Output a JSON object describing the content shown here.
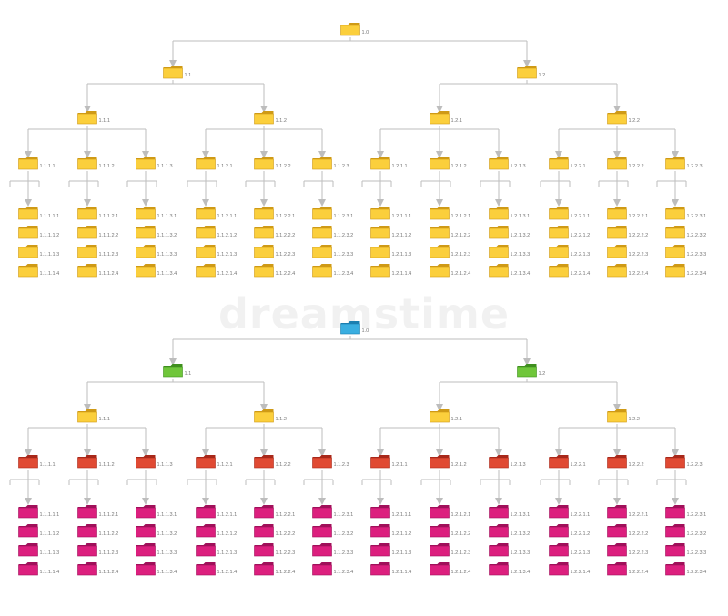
{
  "watermark": "dreamstime",
  "colors": {
    "connector": "#bdbdbd",
    "yellow": "#fbcf3c",
    "yellow_edge": "#cf9a16",
    "blue": "#3aaee0",
    "blue_edge": "#1c7fb0",
    "green": "#6fc63a",
    "green_edge": "#3f8f1e",
    "red": "#e04a33",
    "red_edge": "#a8281a",
    "magenta": "#dc1f7e",
    "magenta_edge": "#a0105a",
    "label": "#777777"
  },
  "trees": [
    {
      "name": "top-tree",
      "level_colors": [
        "yellow",
        "yellow",
        "yellow",
        "yellow",
        "yellow"
      ],
      "root": "1.0",
      "level1": [
        "1.1",
        "1.2"
      ],
      "level2": [
        "1.1.1",
        "1.1.2",
        "1.2.1",
        "1.2.2"
      ],
      "level3": [
        "1.1.1.1",
        "1.1.1.2",
        "1.1.1.3",
        "1.1.2.1",
        "1.1.2.2",
        "1.1.2.3",
        "1.2.1.1",
        "1.2.1.2",
        "1.2.1.3",
        "1.2.2.1",
        "1.2.2.2",
        "1.2.2.3"
      ],
      "leaves": [
        [
          "1.1.1.1.1",
          "1.1.1.1.2",
          "1.1.1.1.3",
          "1.1.1.1.4"
        ],
        [
          "1.1.1.2.1",
          "1.1.1.2.2",
          "1.1.1.2.3",
          "1.1.1.2.4"
        ],
        [
          "1.1.1.3.1",
          "1.1.1.3.2",
          "1.1.1.3.3",
          "1.1.1.3.4"
        ],
        [
          "1.1.2.1.1",
          "1.1.2.1.2",
          "1.1.2.1.3",
          "1.1.2.1.4"
        ],
        [
          "1.1.2.2.1",
          "1.1.2.2.2",
          "1.1.2.2.3",
          "1.1.2.2.4"
        ],
        [
          "1.1.2.3.1",
          "1.1.2.3.2",
          "1.1.2.3.3",
          "1.1.2.3.4"
        ],
        [
          "1.2.1.1.1",
          "1.2.1.1.2",
          "1.2.1.1.3",
          "1.2.1.1.4"
        ],
        [
          "1.2.1.2.1",
          "1.2.1.2.2",
          "1.2.1.2.3",
          "1.2.1.2.4"
        ],
        [
          "1.2.1.3.1",
          "1.2.1.3.2",
          "1.2.1.3.3",
          "1.2.1.3.4"
        ],
        [
          "1.2.2.1.1",
          "1.2.2.1.2",
          "1.2.2.1.3",
          "1.2.2.1.4"
        ],
        [
          "1.2.2.2.1",
          "1.2.2.2.2",
          "1.2.2.2.3",
          "1.2.2.2.4"
        ],
        [
          "1.2.2.3.1",
          "1.2.2.3.2",
          "1.2.2.3.3",
          "1.2.2.3.4"
        ]
      ]
    },
    {
      "name": "bottom-tree",
      "level_colors": [
        "blue",
        "green",
        "yellow",
        "red",
        "magenta"
      ],
      "root": "1.0",
      "level1": [
        "1.1",
        "1.2"
      ],
      "level2": [
        "1.1.1",
        "1.1.2",
        "1.2.1",
        "1.2.2"
      ],
      "level3": [
        "1.1.1.1",
        "1.1.1.2",
        "1.1.1.3",
        "1.1.2.1",
        "1.1.2.2",
        "1.1.2.3",
        "1.2.1.1",
        "1.2.1.2",
        "1.2.1.3",
        "1.2.2.1",
        "1.2.2.2",
        "1.2.2.3"
      ],
      "leaves": [
        [
          "1.1.1.1.1",
          "1.1.1.1.2",
          "1.1.1.1.3",
          "1.1.1.1.4"
        ],
        [
          "1.1.1.2.1",
          "1.1.1.2.2",
          "1.1.1.2.3",
          "1.1.1.2.4"
        ],
        [
          "1.1.1.3.1",
          "1.1.1.3.2",
          "1.1.1.3.3",
          "1.1.1.3.4"
        ],
        [
          "1.1.2.1.1",
          "1.1.2.1.2",
          "1.1.2.1.3",
          "1.1.2.1.4"
        ],
        [
          "1.1.2.2.1",
          "1.1.2.2.2",
          "1.1.2.2.3",
          "1.1.2.2.4"
        ],
        [
          "1.1.2.3.1",
          "1.1.2.3.2",
          "1.1.2.3.3",
          "1.1.2.3.4"
        ],
        [
          "1.2.1.1.1",
          "1.2.1.1.2",
          "1.2.1.1.3",
          "1.2.1.1.4"
        ],
        [
          "1.2.1.2.1",
          "1.2.1.2.2",
          "1.2.1.2.3",
          "1.2.1.2.4"
        ],
        [
          "1.2.1.3.1",
          "1.2.1.3.2",
          "1.2.1.3.3",
          "1.2.1.3.4"
        ],
        [
          "1.2.2.1.1",
          "1.2.2.1.2",
          "1.2.2.1.3",
          "1.2.2.1.4"
        ],
        [
          "1.2.2.2.1",
          "1.2.2.2.2",
          "1.2.2.2.3",
          "1.2.2.2.4"
        ],
        [
          "1.2.2.3.1",
          "1.2.2.3.2",
          "1.2.2.3.3",
          "1.2.2.3.4"
        ]
      ]
    }
  ]
}
